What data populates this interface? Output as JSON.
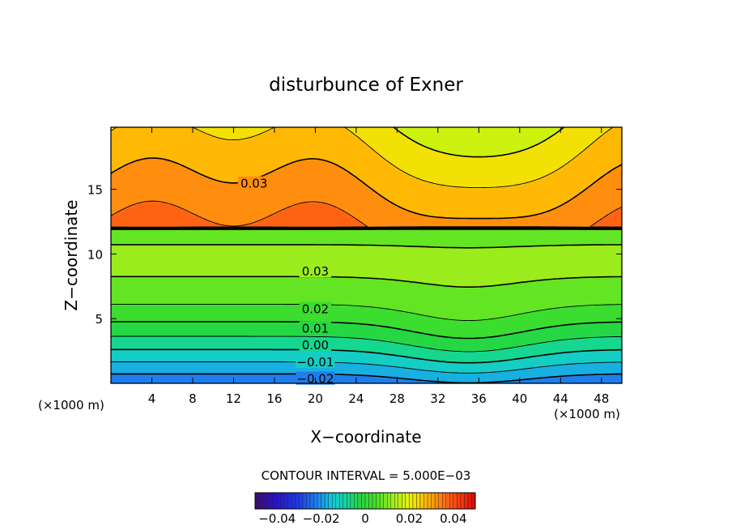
{
  "chart_data": {
    "type": "contour",
    "title": "disturbunce of Exner",
    "xlabel": "X−coordinate",
    "ylabel": "Z−coordinate",
    "x_unit": "(×1000 m)",
    "x_unit_right": "(×1000 m)",
    "xlim": [
      0,
      50
    ],
    "ylim": [
      0,
      19.8
    ],
    "x_ticks": [
      "4",
      "8",
      "12",
      "16",
      "20",
      "24",
      "28",
      "32",
      "36",
      "40",
      "44",
      "48"
    ],
    "y_ticks": [
      "5",
      "10",
      "15"
    ],
    "contour_labels": [
      "0.03",
      "0.03",
      "0.02",
      "0.01",
      "0.00",
      "−0.01",
      "−0.02"
    ],
    "contour_interval_text": "CONTOUR INTERVAL = 5.000E−03",
    "contour_interval": 0.005,
    "field_range": [
      -0.02,
      0.04
    ],
    "colorbar": {
      "range": [
        -0.05,
        0.05
      ],
      "tick_labels": [
        "−0.04",
        "−0.02",
        "0",
        "0.02",
        "0.04"
      ],
      "tick_values": [
        -0.04,
        -0.02,
        0,
        0.02,
        0.04
      ]
    },
    "features": {
      "max_center_z": 12,
      "max_centers_x": [
        4,
        20,
        50
      ],
      "saddle_x": 36,
      "ridge_x": 35
    }
  }
}
